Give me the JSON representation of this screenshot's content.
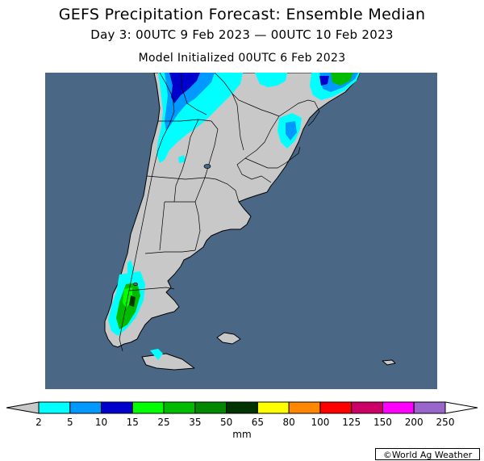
{
  "header": {
    "title": "GEFS Precipitation Forecast: Ensemble Median",
    "period": "Day 3: 00UTC 9 Feb 2023 — 00UTC 10 Feb 2023",
    "init": "Model Initialized 00UTC 6 Feb 2023"
  },
  "map": {
    "ocean_color": "#4a6886",
    "land_color": "#c8c8c8",
    "credit": "©World Ag Weather"
  },
  "legend": {
    "unit": "mm",
    "under_color": "#c8c8c8",
    "over_color": "#ffffff",
    "ticks": [
      "2",
      "5",
      "10",
      "15",
      "25",
      "35",
      "50",
      "65",
      "80",
      "100",
      "125",
      "150",
      "200",
      "250"
    ],
    "colors": [
      "#00ffff",
      "#0099ff",
      "#0000cc",
      "#00ff00",
      "#00bb00",
      "#008800",
      "#003300",
      "#ffff00",
      "#ff8800",
      "#ff0000",
      "#cc0066",
      "#ff00ff",
      "#9966cc"
    ]
  }
}
